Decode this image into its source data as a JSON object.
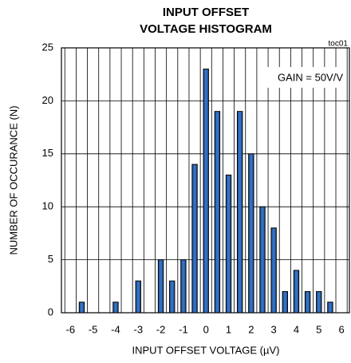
{
  "chart_data": {
    "type": "histogram",
    "title": [
      "INPUT OFFSET",
      "VOLTAGE HISTOGRAM"
    ],
    "annotations": [
      "toc01",
      "GAIN = 50V/V"
    ],
    "xlabel": "INPUT OFFSET VOLTAGE (µV)",
    "ylabel": "NUMBER OF OCCURANCE (N)",
    "bins": [
      -6.25,
      -5.75,
      -5.25,
      -4.75,
      -4.25,
      -3.75,
      -3.25,
      -2.75,
      -2.25,
      -1.75,
      -1.25,
      -0.75,
      -0.25,
      0.25,
      0.75,
      1.25,
      1.75,
      2.25,
      2.75,
      3.25,
      3.75,
      4.25,
      4.75,
      5.25,
      5.75,
      6.25
    ],
    "values": [
      0,
      1,
      0,
      0,
      1,
      0,
      3,
      0,
      5,
      3,
      5,
      14,
      23,
      19,
      13,
      19,
      15,
      10,
      8,
      2,
      4,
      2,
      2,
      1,
      0
    ],
    "color": "#3a78c9",
    "xlim": [
      -6.4,
      6.35
    ],
    "xticks": [
      -6,
      -5,
      -4,
      -3,
      -2,
      -1,
      0,
      1,
      2,
      3,
      4,
      5,
      6
    ],
    "ylim": [
      0,
      25
    ],
    "yticks": [
      0,
      5,
      10,
      15,
      20,
      25
    ],
    "grid": true
  }
}
